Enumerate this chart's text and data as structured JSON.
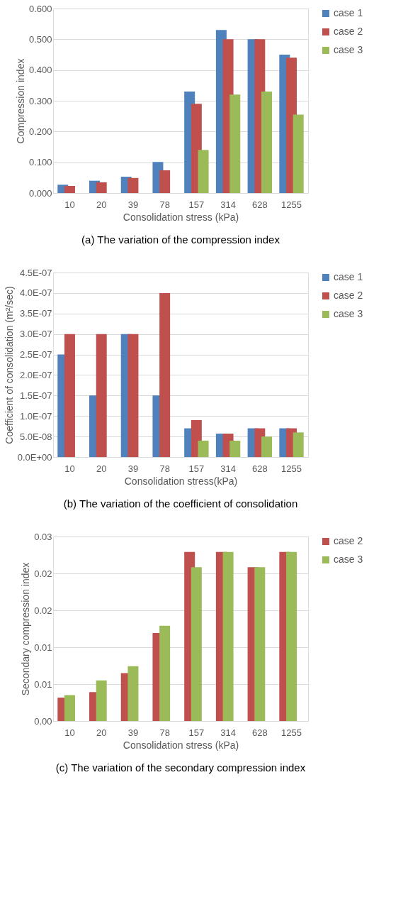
{
  "chart_data": [
    {
      "type": "bar",
      "xlabel": "Consolidation stress (kPa)",
      "ylabel": "Compression index",
      "annotations": [
        "(a) The variation of the compression index"
      ],
      "categories": [
        "10",
        "20",
        "39",
        "78",
        "157",
        "314",
        "628",
        "1255"
      ],
      "series": [
        {
          "name": "case 1",
          "color": "#4f81bd",
          "values": [
            0.027,
            0.04,
            0.053,
            0.101,
            0.33,
            0.53,
            0.5,
            0.45
          ]
        },
        {
          "name": "case 2",
          "color": "#c0504d",
          "values": [
            0.023,
            0.035,
            0.049,
            0.074,
            0.29,
            0.5,
            0.5,
            0.44
          ]
        },
        {
          "name": "case 3",
          "color": "#9bbb59",
          "values": [
            null,
            null,
            null,
            null,
            0.14,
            0.32,
            0.33,
            0.255
          ]
        }
      ],
      "ylim": [
        0,
        0.6
      ],
      "yticks": [
        {
          "value": 0,
          "label": "0.000"
        },
        {
          "value": 0.1,
          "label": "0.100"
        },
        {
          "value": 0.2,
          "label": "0.200"
        },
        {
          "value": 0.3,
          "label": "0.300"
        },
        {
          "value": 0.4,
          "label": "0.400"
        },
        {
          "value": 0.5,
          "label": "0.500"
        },
        {
          "value": 0.6,
          "label": "0.600"
        }
      ],
      "grid": "y",
      "legend": "right"
    },
    {
      "type": "bar",
      "xlabel": "Consolidation stress(kPa)",
      "ylabel": "Coefficient of consolidation  (m²/sec)",
      "annotations": [
        "(b) The variation of the coefficient of consolidation"
      ],
      "categories": [
        "10",
        "20",
        "39",
        "78",
        "157",
        "314",
        "628",
        "1255"
      ],
      "series": [
        {
          "name": "case 1",
          "color": "#4f81bd",
          "values": [
            2.5e-07,
            1.5e-07,
            3e-07,
            1.5e-07,
            7e-08,
            5.7e-08,
            7e-08,
            7e-08
          ]
        },
        {
          "name": "case 2",
          "color": "#c0504d",
          "values": [
            3e-07,
            3e-07,
            3e-07,
            4e-07,
            9e-08,
            5.7e-08,
            7e-08,
            7e-08
          ]
        },
        {
          "name": "case 3",
          "color": "#9bbb59",
          "values": [
            null,
            null,
            null,
            null,
            4e-08,
            4e-08,
            5e-08,
            6e-08
          ]
        }
      ],
      "ylim": [
        0,
        4.5e-07
      ],
      "yticks": [
        {
          "value": 0,
          "label": "0.0E+00"
        },
        {
          "value": 5e-08,
          "label": "5.0E-08"
        },
        {
          "value": 1e-07,
          "label": "1.0E-07"
        },
        {
          "value": 1.5e-07,
          "label": "1.5E-07"
        },
        {
          "value": 2e-07,
          "label": "2.0E-07"
        },
        {
          "value": 2.5e-07,
          "label": "2.5E-07"
        },
        {
          "value": 3e-07,
          "label": "3.0E-07"
        },
        {
          "value": 3.5e-07,
          "label": "3.5E-07"
        },
        {
          "value": 4e-07,
          "label": "4.0E-07"
        },
        {
          "value": 4.5e-07,
          "label": "4.5E-07"
        }
      ],
      "grid": "y",
      "legend": "right"
    },
    {
      "type": "bar",
      "xlabel": "Consolidation stress (kPa)",
      "ylabel": "Secondary compression index",
      "annotations": [
        "(c) The variation of the secondary compression index"
      ],
      "categories": [
        "10",
        "20",
        "39",
        "78",
        "157",
        "314",
        "628",
        "1255"
      ],
      "series": [
        {
          "name": "case 2",
          "color": "#c0504d",
          "values": [
            0.0038,
            0.0047,
            0.0078,
            0.0143,
            0.0275,
            0.0275,
            0.025,
            0.0275
          ]
        },
        {
          "name": "case 3",
          "color": "#9bbb59",
          "values": [
            0.0042,
            0.0066,
            0.0089,
            0.0155,
            0.025,
            0.0275,
            0.025,
            0.0275
          ]
        }
      ],
      "ylim": [
        0,
        0.03
      ],
      "yticks": [
        {
          "value": 0,
          "label": "0.00"
        },
        {
          "value": 0.006,
          "label": "0.01"
        },
        {
          "value": 0.012,
          "label": "0.01"
        },
        {
          "value": 0.018,
          "label": "0.02"
        },
        {
          "value": 0.024,
          "label": "0.02"
        },
        {
          "value": 0.03,
          "label": "0.03"
        }
      ],
      "grid": "y",
      "legend": "right"
    }
  ]
}
